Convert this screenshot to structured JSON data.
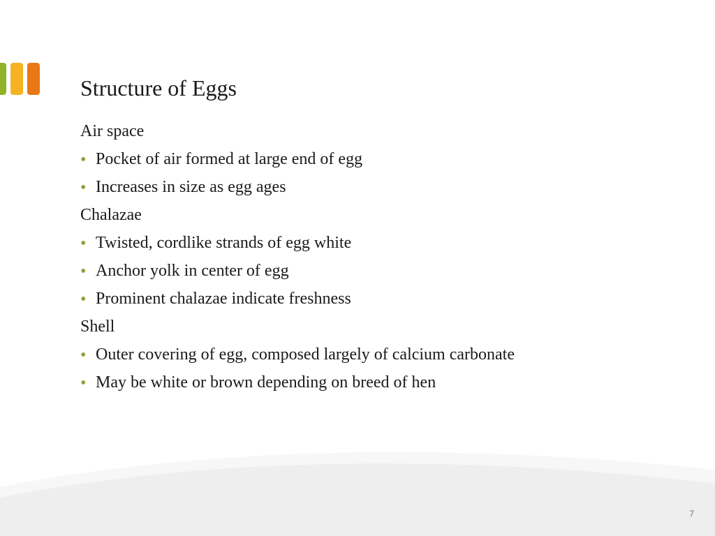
{
  "accent_bars": {
    "colors": [
      "#8fb426",
      "#f5b324",
      "#e97817"
    ],
    "offsets": [
      -9,
      0,
      0
    ]
  },
  "title": {
    "text": "Structure of Eggs",
    "color": "#1a1a1a",
    "fontsize": 32
  },
  "body": {
    "text_color": "#1a1a1a",
    "bullet_color": "#8f9e3e",
    "fontsize": 24,
    "sections": [
      {
        "label": "Air space",
        "items": [
          "Pocket of air formed at large end of egg",
          "Increases in size as egg ages"
        ]
      },
      {
        "label": "Chalazae",
        "items": [
          "Twisted, cordlike strands of egg white",
          "Anchor yolk in center of egg",
          "Prominent chalazae indicate freshness"
        ]
      },
      {
        "label": "Shell",
        "items": [
          "Outer covering of egg, composed largely of calcium carbonate",
          "May be white or brown depending on breed of hen"
        ]
      }
    ]
  },
  "swoosh": {
    "fill": "#eeeeee",
    "highlight": "#f7f7f7"
  },
  "page_number": "7"
}
